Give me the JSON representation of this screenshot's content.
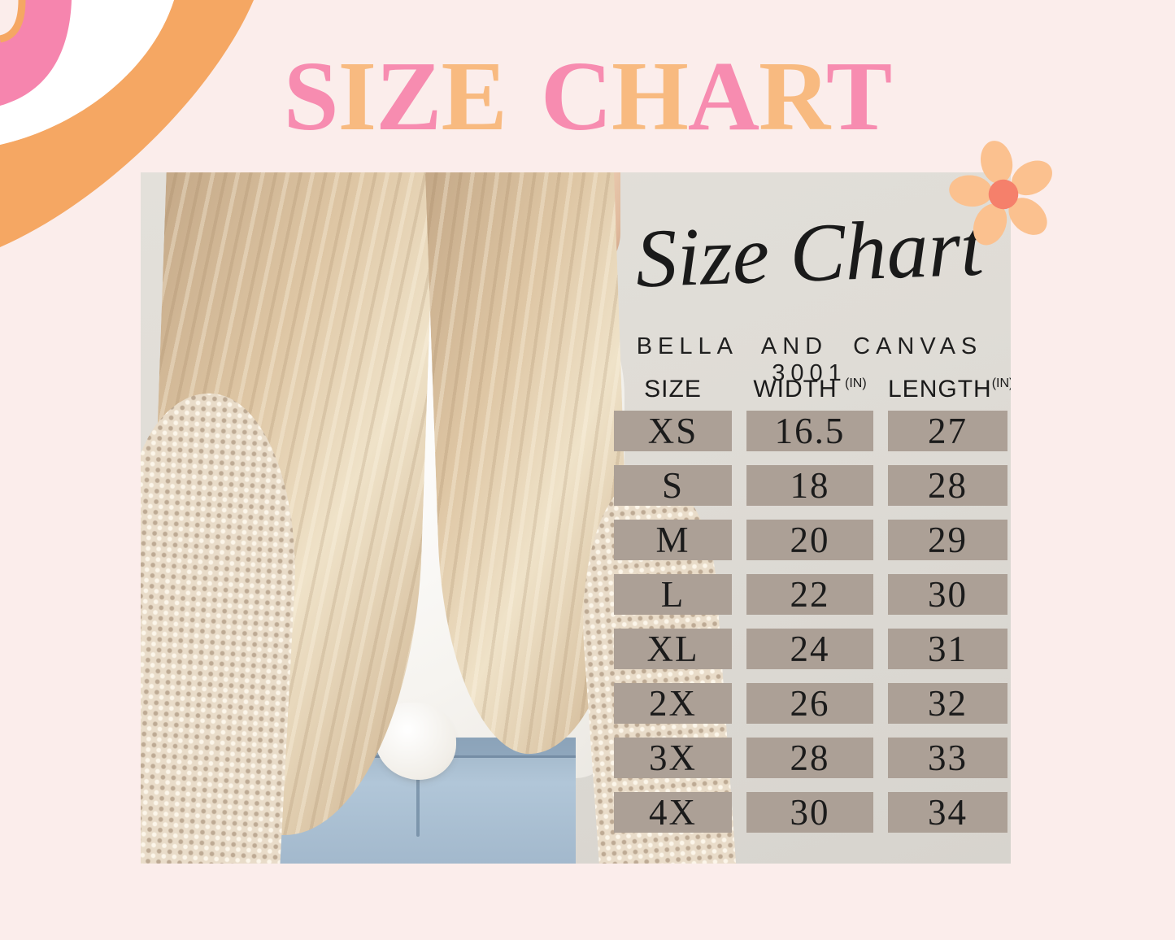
{
  "colors": {
    "page-bg": "#FBEDEB",
    "title-pink": "#F78CB0",
    "title-orange": "#F8BA80",
    "swirl-pink": "#F685AE",
    "swirl-orange": "#F5A763",
    "swirl-white": "#FFFFFF",
    "flower-petal": "#FBC18F",
    "flower-center": "#F5806B",
    "wall": "#DFDCD6",
    "cell-bg": "#ACA096",
    "ink": "#1B1B1B"
  },
  "title": {
    "text": "SIZE CHART",
    "letter_colors": {
      "pink": "#F78CB0",
      "orange": "#F8BA80"
    }
  },
  "card": {
    "script_title": "Size Chart",
    "subtitle": "BELLA AND CANVAS 3001",
    "table": {
      "header": {
        "size": "SIZE",
        "width": "WIDTH",
        "length": "LENGTH",
        "unit": "(IN)"
      }
    }
  },
  "chart_data": {
    "type": "table",
    "title": "Size Chart",
    "subtitle": "Bella and Canvas 3001",
    "columns": [
      "SIZE",
      "WIDTH (IN)",
      "LENGTH (IN)"
    ],
    "rows": [
      [
        "XS",
        "16.5",
        "27"
      ],
      [
        "S",
        "18",
        "28"
      ],
      [
        "M",
        "20",
        "29"
      ],
      [
        "L",
        "22",
        "30"
      ],
      [
        "XL",
        "24",
        "31"
      ],
      [
        "2X",
        "26",
        "32"
      ],
      [
        "3X",
        "28",
        "33"
      ],
      [
        "4X",
        "30",
        "34"
      ]
    ]
  }
}
